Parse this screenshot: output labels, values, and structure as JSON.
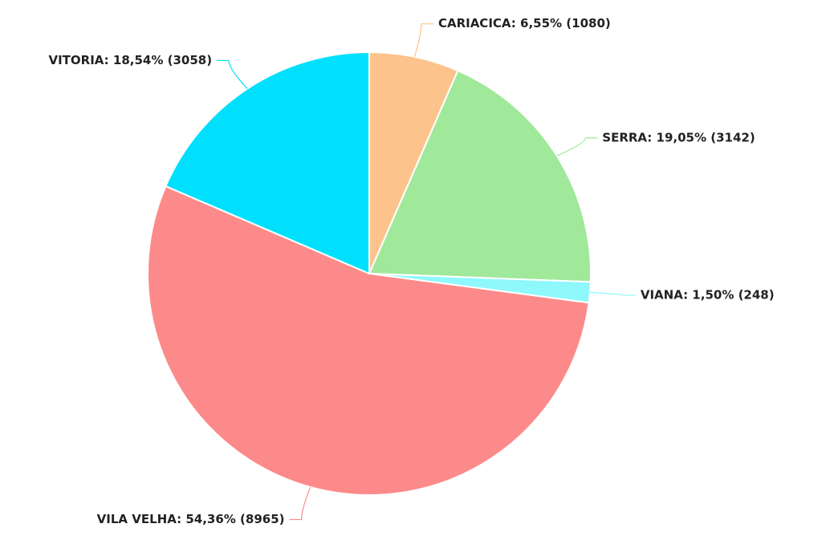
{
  "chart_data": {
    "type": "pie",
    "values": [
      1080,
      3142,
      248,
      8965,
      3058
    ],
    "value_labels": [
      "CARIACICA: 6,55% (1080)",
      "SERRA: 19,05% (3142)",
      "VIANA: 1,50% (248)",
      "VILA VELHA: 54,36% (8965)",
      "VITORIA: 18,54% (3058)"
    ],
    "colors": [
      "#fcc48c",
      "#a0e89a",
      "#8ef8fc",
      "#fd8a8a",
      "#00e0fc"
    ]
  }
}
